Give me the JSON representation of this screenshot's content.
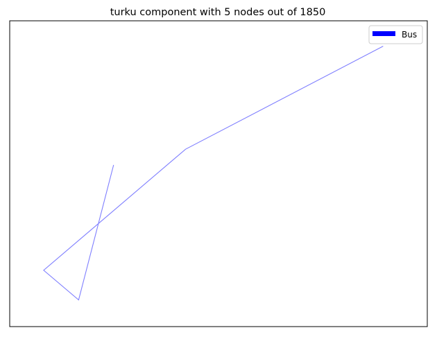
{
  "chart_data": {
    "type": "line",
    "title": "turku component with 5 nodes out of 1850",
    "xlabel": "",
    "ylabel": "",
    "axis_ticks": false,
    "grid": false,
    "legend": {
      "placement": "top-right",
      "entries": [
        {
          "label": "Bus",
          "color": "#0000ff"
        }
      ]
    },
    "series": [
      {
        "name": "Bus",
        "color": "#0000ff",
        "opacity": 0.5,
        "x": [
          0.206,
          0.103,
          0.0,
          0.418,
          1.0
        ],
        "y": [
          0.532,
          0.0,
          0.117,
          0.594,
          1.0
        ]
      }
    ],
    "xlim": [
      -0.1,
      1.13
    ],
    "ylim": [
      -0.105,
      1.1
    ]
  }
}
